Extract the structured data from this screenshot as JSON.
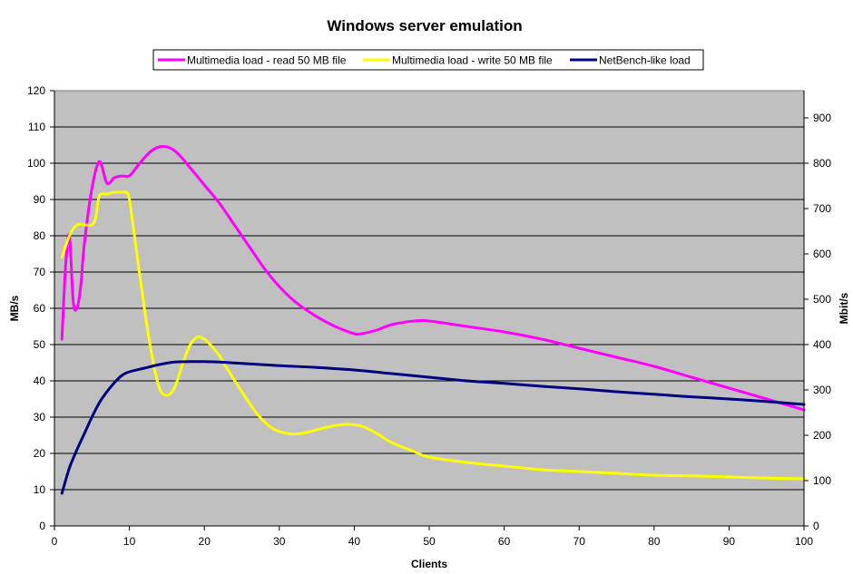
{
  "chart_data": {
    "type": "line",
    "title": "Windows server emulation",
    "xlabel": "Clients",
    "ylabel": "MB/s",
    "y2label": "Mbit/s",
    "xlim": [
      0,
      100
    ],
    "ylim": [
      0,
      120
    ],
    "y2lim": [
      0,
      960
    ],
    "xticks": [
      0,
      10,
      20,
      30,
      40,
      50,
      60,
      70,
      80,
      90,
      100
    ],
    "yticks": [
      0,
      10,
      20,
      30,
      40,
      50,
      60,
      70,
      80,
      90,
      100,
      110,
      120
    ],
    "y2ticks": [
      0,
      100,
      200,
      300,
      400,
      500,
      600,
      700,
      800,
      900
    ],
    "grid": "horizontal",
    "background": "#c0c0c0",
    "legend_position": "top",
    "series": [
      {
        "name": "Multimedia load - read 50 MB file",
        "color": "#ff00ff",
        "x": [
          1,
          1.5,
          2,
          2.5,
          3,
          3.5,
          4,
          5,
          6,
          7,
          8,
          9,
          10,
          11,
          12,
          13,
          14,
          15,
          16,
          17,
          18,
          20,
          22,
          24,
          26,
          28,
          30,
          32,
          34,
          36,
          38,
          40,
          41,
          43,
          45,
          48,
          50,
          55,
          60,
          65,
          70,
          75,
          80,
          85,
          90,
          95,
          100
        ],
        "values": [
          51.5,
          72,
          80,
          62,
          60,
          66,
          78,
          93,
          100.5,
          94.5,
          96,
          96.5,
          96.5,
          99,
          101.5,
          103.5,
          104.5,
          104.5,
          103.5,
          101.5,
          99,
          94,
          89,
          83,
          77,
          71,
          66,
          62,
          59,
          56.5,
          54.5,
          53,
          53,
          54,
          55.5,
          56.5,
          56.5,
          55,
          53.5,
          51.5,
          49,
          46.5,
          44,
          41,
          38,
          35,
          32
        ]
      },
      {
        "name": "Multimedia load - write 50 MB file",
        "color": "#ffff00",
        "x": [
          1,
          2,
          3,
          4,
          5,
          5.5,
          6,
          7,
          8,
          9,
          9.5,
          10,
          11,
          12,
          13,
          14,
          15,
          16,
          17,
          18,
          19,
          20,
          21,
          22,
          23,
          25,
          27,
          29,
          31,
          33,
          35,
          37,
          39,
          41,
          43,
          45,
          48,
          50,
          55,
          60,
          65,
          70,
          75,
          80,
          85,
          90,
          95,
          100
        ],
        "values": [
          74,
          80,
          83,
          83,
          83,
          85,
          91,
          91.5,
          92,
          92,
          92,
          90,
          75,
          60,
          47,
          38,
          36,
          38,
          44,
          49.5,
          52,
          51.5,
          49.5,
          47,
          43.5,
          37,
          31,
          27,
          25.5,
          25.5,
          26.5,
          27.5,
          28,
          27.5,
          25.5,
          23,
          20.5,
          19,
          17.5,
          16.5,
          15.5,
          15,
          14.5,
          14,
          13.8,
          13.5,
          13.2,
          13
        ]
      },
      {
        "name": "NetBench-like load",
        "color": "#000080",
        "x": [
          1,
          2,
          3,
          4,
          5,
          6,
          7,
          8,
          9,
          10,
          12,
          14,
          16,
          18,
          20,
          22,
          25,
          30,
          35,
          40,
          45,
          50,
          55,
          60,
          65,
          70,
          75,
          80,
          85,
          90,
          95,
          100
        ],
        "values": [
          9,
          16,
          21,
          25.5,
          30,
          34,
          37,
          39.5,
          41.5,
          42.5,
          43.5,
          44.5,
          45.2,
          45.3,
          45.3,
          45.2,
          44.8,
          44.2,
          43.7,
          43,
          42,
          41,
          40,
          39.3,
          38.5,
          37.8,
          37,
          36.3,
          35.6,
          35,
          34.3,
          33.5
        ]
      }
    ]
  }
}
